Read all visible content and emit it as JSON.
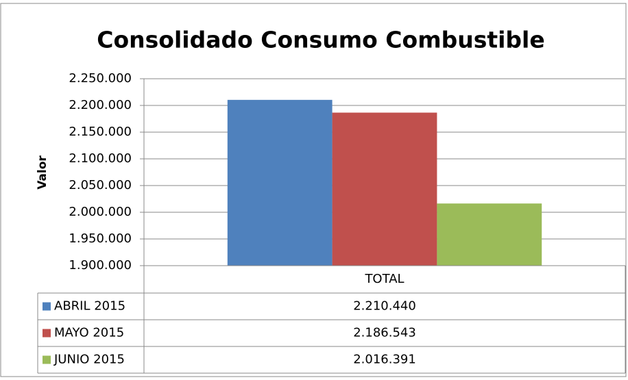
{
  "chart_data": {
    "type": "bar",
    "title": "Consolidado Consumo Combustible",
    "y_label": "Valor",
    "categories": [
      "TOTAL"
    ],
    "series": [
      {
        "name": "ABRIL 2015",
        "color": "#4f81bd",
        "values": [
          2210440
        ],
        "value_labels": [
          "2.210.440"
        ]
      },
      {
        "name": "MAYO 2015",
        "color": "#c0504d",
        "values": [
          2186543
        ],
        "value_labels": [
          "2.186.543"
        ]
      },
      {
        "name": "JUNIO 2015",
        "color": "#9bbb59",
        "values": [
          2016391
        ],
        "value_labels": [
          "2.016.391"
        ]
      }
    ],
    "ylim": [
      1900000,
      2250000
    ],
    "yticks": [
      {
        "value": 1900000,
        "label": "1.900.000"
      },
      {
        "value": 1950000,
        "label": "1.950.000"
      },
      {
        "value": 2000000,
        "label": "2.000.000"
      },
      {
        "value": 2050000,
        "label": "2.050.000"
      },
      {
        "value": 2100000,
        "label": "2.100.000"
      },
      {
        "value": 2150000,
        "label": "2.150.000"
      },
      {
        "value": 2200000,
        "label": "2.200.000"
      },
      {
        "value": 2250000,
        "label": "2.250.000"
      }
    ],
    "grid": true,
    "data_table": true
  }
}
